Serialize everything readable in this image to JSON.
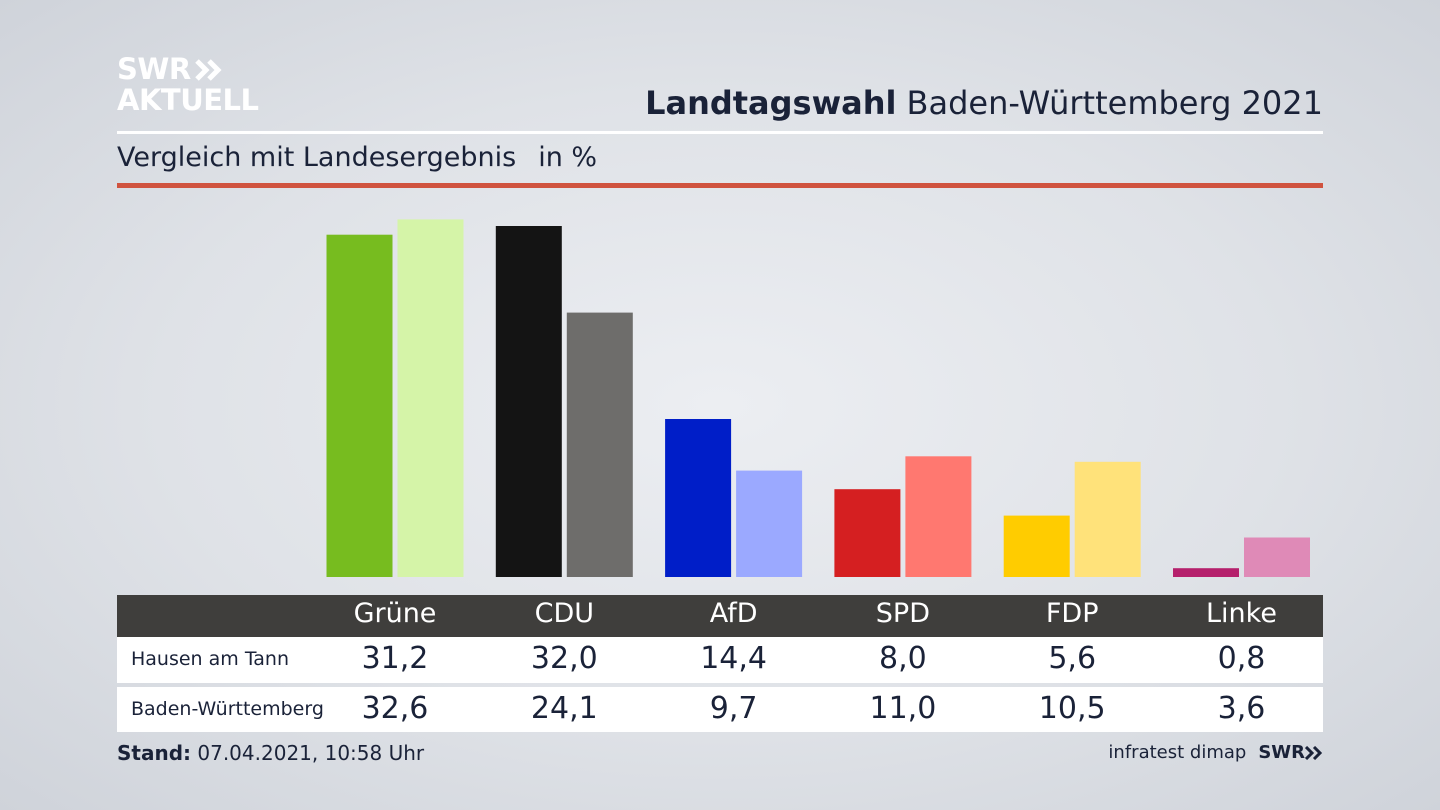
{
  "brand": {
    "line1": "SWR",
    "line2": "AKTUELL",
    "footer_logo": "SWR"
  },
  "headline": {
    "bold": "Landtagswahl",
    "rest": "Baden-Württemberg 2021"
  },
  "subtitle": {
    "text": "Vergleich mit Landesergebnis",
    "unit": "in %"
  },
  "footer": {
    "stand_label": "Stand:",
    "stand_value": "07.04.2021, 10:58 Uhr",
    "source": "infratest dimap"
  },
  "chart_data": {
    "type": "bar",
    "categories": [
      "Grüne",
      "CDU",
      "AfD",
      "SPD",
      "FDP",
      "Linke"
    ],
    "series": [
      {
        "name": "Hausen am Tann",
        "values": [
          31.2,
          32.0,
          14.4,
          8.0,
          5.6,
          0.8
        ],
        "colors": [
          "#77bc1f",
          "#141414",
          "#001ec8",
          "#d51f21",
          "#ffcc00",
          "#b5206c"
        ]
      },
      {
        "name": "Baden-Württemberg",
        "values": [
          32.6,
          24.1,
          9.7,
          11.0,
          10.5,
          3.6
        ],
        "colors": [
          "#d5f4a8",
          "#6e6d6b",
          "#9ba9ff",
          "#ff7870",
          "#ffe27a",
          "#df8ab7"
        ]
      }
    ],
    "ylim": [
      0,
      33
    ],
    "value_labels": [
      [
        "31,2",
        "32,0",
        "14,4",
        "8,0",
        "5,6",
        "0,8"
      ],
      [
        "32,6",
        "24,1",
        "9,7",
        "11,0",
        "10,5",
        "3,6"
      ]
    ]
  }
}
